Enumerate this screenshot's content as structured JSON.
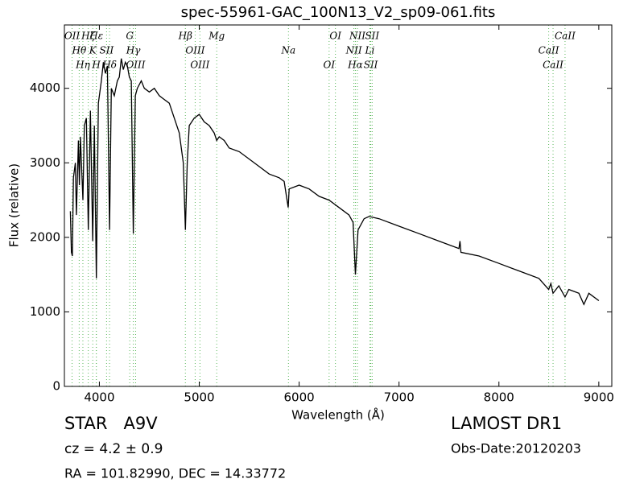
{
  "chart_data": {
    "type": "line",
    "title": "spec-55961-GAC_100N13_V2_sp09-061.fits",
    "x_label": "Wavelength (Å)",
    "y_label": "Flux (relative)",
    "color": "#000000",
    "line_color": "#5cb85c",
    "xlim": [
      3650,
      9130
    ],
    "ylim": [
      0,
      4850
    ],
    "xticks": [
      4000,
      5000,
      6000,
      7000,
      8000,
      9000
    ],
    "yticks": [
      0,
      1000,
      2000,
      3000,
      4000
    ],
    "x": [
      3710,
      3720,
      3730,
      3740,
      3760,
      3770,
      3790,
      3800,
      3810,
      3835,
      3850,
      3870,
      3889,
      3910,
      3934,
      3950,
      3970,
      3990,
      4020,
      4040,
      4060,
      4080,
      4102,
      4120,
      4150,
      4180,
      4200,
      4220,
      4240,
      4260,
      4280,
      4300,
      4320,
      4340,
      4360,
      4380,
      4420,
      4450,
      4500,
      4550,
      4600,
      4650,
      4700,
      4750,
      4800,
      4840,
      4861,
      4880,
      4900,
      4950,
      5000,
      5050,
      5100,
      5150,
      5175,
      5200,
      5250,
      5300,
      5400,
      5500,
      5600,
      5700,
      5800,
      5850,
      5890,
      5900,
      6000,
      6100,
      6200,
      6300,
      6400,
      6500,
      6540,
      6563,
      6590,
      6650,
      6700,
      6800,
      7000,
      7200,
      7400,
      7600,
      7610,
      7620,
      7800,
      8000,
      8200,
      8400,
      8498,
      8520,
      8542,
      8600,
      8662,
      8700,
      8800,
      8850,
      8900,
      9000
    ],
    "values": [
      2350,
      1800,
      1750,
      2800,
      3000,
      2300,
      3300,
      2700,
      3350,
      2500,
      3500,
      3600,
      2100,
      3700,
      1950,
      3500,
      1450,
      3800,
      4100,
      4350,
      4200,
      4300,
      2100,
      4000,
      3900,
      4100,
      4150,
      4400,
      4250,
      4350,
      4300,
      4150,
      4100,
      2050,
      3900,
      4000,
      4100,
      4000,
      3950,
      4000,
      3900,
      3850,
      3800,
      3600,
      3400,
      3000,
      2100,
      3000,
      3500,
      3600,
      3650,
      3550,
      3500,
      3400,
      3300,
      3350,
      3300,
      3200,
      3150,
      3050,
      2950,
      2850,
      2800,
      2750,
      2400,
      2650,
      2700,
      2650,
      2550,
      2500,
      2400,
      2300,
      2200,
      1500,
      2100,
      2250,
      2280,
      2250,
      2150,
      2050,
      1950,
      1850,
      1950,
      1800,
      1750,
      1650,
      1550,
      1450,
      1300,
      1380,
      1250,
      1350,
      1200,
      1300,
      1250,
      1100,
      1250,
      1150
    ],
    "lines": [
      {
        "x": 3727,
        "label": "OII"
      },
      {
        "x": 3798,
        "label": "Hθ"
      },
      {
        "x": 3835,
        "label": "Hη"
      },
      {
        "x": 3889,
        "label": "Hζ"
      },
      {
        "x": 3934,
        "label": "K"
      },
      {
        "x": 3969,
        "label": "H"
      },
      {
        "x": 3970,
        "label": "Hε"
      },
      {
        "x": 4072,
        "label": "SII"
      },
      {
        "x": 4102,
        "label": "Hδ"
      },
      {
        "x": 4304,
        "label": "G"
      },
      {
        "x": 4340,
        "label": "Hγ"
      },
      {
        "x": 4363,
        "label": "OIII"
      },
      {
        "x": 4861,
        "label": "Hβ"
      },
      {
        "x": 4959,
        "label": "OIII"
      },
      {
        "x": 5007,
        "label": "OIII"
      },
      {
        "x": 5175,
        "label": "Mg"
      },
      {
        "x": 5893,
        "label": "Na"
      },
      {
        "x": 6300,
        "label": "OI"
      },
      {
        "x": 6363,
        "label": "OI"
      },
      {
        "x": 6548,
        "label": "NII"
      },
      {
        "x": 6563,
        "label": "Hα"
      },
      {
        "x": 6583,
        "label": "NII"
      },
      {
        "x": 6708,
        "label": "Li"
      },
      {
        "x": 6717,
        "label": "SII"
      },
      {
        "x": 6731,
        "label": "SII"
      },
      {
        "x": 8498,
        "label": "CaII"
      },
      {
        "x": 8542,
        "label": "CaII"
      },
      {
        "x": 8662,
        "label": "CaII"
      }
    ],
    "annotations": [
      "STAR   A9V",
      "cz = 4.2 ± 0.9",
      "RA = 101.82990, DEC = 14.33772",
      "LAMOST DR1",
      "Obs-Date:20120203"
    ]
  }
}
